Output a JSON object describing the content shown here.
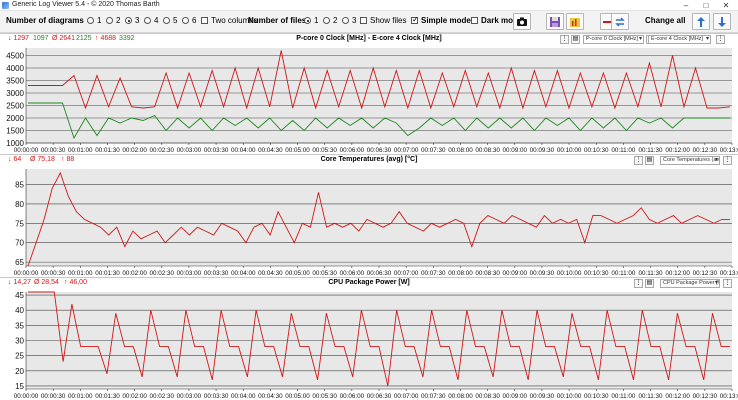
{
  "window": {
    "title": "Generic Log Viewer 5.4 - © 2020 Thomas Barth",
    "minimize": "–",
    "maximize": "□",
    "close": "✕"
  },
  "toolbar": {
    "num_diagrams_label": "Number of diagrams",
    "diagram_options": [
      "1",
      "2",
      "3",
      "4",
      "5",
      "6"
    ],
    "diagram_selected": "3",
    "two_columns_label": "Two columns",
    "num_files_label": "Number of files",
    "file_options": [
      "1",
      "2",
      "3"
    ],
    "file_selected": "1",
    "show_files_label": "Show files",
    "simple_mode_label": "Simple mode",
    "dark_mode_label": "Dark mod",
    "change_all_label": "Change all"
  },
  "colors": {
    "red": "#d01818",
    "green": "#1c8a1c",
    "grid": "#444444",
    "bg": "#e8e8e8"
  },
  "x_ticks": [
    "00:00:00",
    "00:00:30",
    "00:01:00",
    "00:01:30",
    "00:02:00",
    "00:02:30",
    "00:03:00",
    "00:03:30",
    "00:04:00",
    "00:04:30",
    "00:05:00",
    "00:05:30",
    "00:06:00",
    "00:06:30",
    "00:07:00",
    "00:07:30",
    "00:08:00",
    "00:08:30",
    "00:09:00",
    "00:09:30",
    "00:10:00",
    "00:10:30",
    "00:11:00",
    "00:11:30",
    "00:12:00",
    "00:12:30",
    "00:13:00"
  ],
  "panels": [
    {
      "title": "P-core 0 Clock [MHz]  -  E-core 4 Clock [MHz]",
      "stats": {
        "min": "↓ 1297",
        "min2": "1097",
        "avg": "Ø 2641",
        "avg2": "2125",
        "max": "↑ 4688",
        "max2": "3392"
      },
      "selects": [
        "P-core 0 Clock [MHz]",
        "E-core 4 Clock [MHz]"
      ],
      "chart_data": {
        "type": "line",
        "ylim": [
          1000,
          4800
        ],
        "yticks": [
          "1000",
          "1500",
          "2000",
          "2500",
          "3000",
          "3500",
          "4000",
          "4500"
        ],
        "series": [
          {
            "color": "red",
            "values": [
              3300,
              3300,
              3300,
              3300,
              3700,
              2400,
              3700,
              2450,
              3600,
              2450,
              2400,
              2450,
              3800,
              2400,
              3800,
              2450,
              3900,
              2450,
              4000,
              2400,
              4000,
              2450,
              4700,
              2400,
              4000,
              2400,
              3900,
              2450,
              3900,
              2400,
              4000,
              2450,
              3900,
              2400,
              3900,
              2400,
              3800,
              2450,
              3900,
              2450,
              3800,
              2400,
              4000,
              2400,
              3900,
              2450,
              3900,
              2400,
              3800,
              2450,
              3800,
              2400,
              3800,
              2450,
              4200,
              2450,
              4500,
              2450,
              4000,
              2400,
              2400,
              2450
            ]
          },
          {
            "color": "green",
            "values": [
              2600,
              2600,
              2600,
              2600,
              1200,
              2000,
              1300,
              2000,
              1800,
              2000,
              1900,
              2100,
              1500,
              2000,
              1600,
              2000,
              1500,
              2000,
              1700,
              2000,
              1600,
              2000,
              1500,
              1900,
              1500,
              2000,
              1600,
              2000,
              1700,
              2000,
              1600,
              2000,
              1800,
              1300,
              1600,
              2000,
              1700,
              2000,
              1500,
              2000,
              1600,
              2000,
              1600,
              2000,
              1500,
              2000,
              1700,
              2000,
              1500,
              2000,
              1600,
              2000,
              1500,
              2000,
              1800,
              2000,
              1600,
              2000,
              2000,
              2000,
              2000,
              2000
            ]
          }
        ]
      }
    },
    {
      "title": "Core Temperatures (avg) [°C]",
      "stats": {
        "min": "↓ 64",
        "avg": "Ø 75,18",
        "max": "↑ 88"
      },
      "selects": [
        "Core Temperatures (avg)"
      ],
      "chart_data": {
        "type": "line",
        "ylim": [
          64,
          89
        ],
        "yticks": [
          "65",
          "70",
          "75",
          "80",
          "85"
        ],
        "series": [
          {
            "color": "red",
            "values": [
              64,
              70,
              76,
              84,
              88,
              82,
              78,
              76,
              75,
              74,
              72,
              74,
              69,
              73,
              71,
              72,
              73,
              70,
              72,
              74,
              72,
              74,
              73,
              72,
              75,
              74,
              73,
              70,
              74,
              75,
              72,
              78,
              74,
              70,
              75,
              74,
              83,
              74,
              75,
              74,
              75,
              73,
              76,
              75,
              74,
              75,
              78,
              75,
              74,
              73,
              75,
              74,
              75,
              76,
              75,
              69,
              75,
              77,
              76,
              75,
              77,
              76,
              75,
              74,
              77,
              75,
              76,
              75,
              76,
              70,
              77,
              77,
              76,
              75,
              76,
              77,
              79,
              76,
              75,
              76,
              77,
              75,
              76,
              77,
              76,
              75,
              76,
              76
            ]
          }
        ]
      }
    },
    {
      "title": "CPU Package Power [W]",
      "stats": {
        "min": "↓ 14,27",
        "avg": "Ø 28,54",
        "max": "↑ 46,00"
      },
      "selects": [
        "CPU Package Power [W]"
      ],
      "chart_data": {
        "type": "line",
        "ylim": [
          14,
          46
        ],
        "yticks": [
          "15",
          "20",
          "25",
          "30",
          "35",
          "40",
          "45"
        ],
        "series": [
          {
            "color": "red",
            "values": [
              46,
              46,
              46,
              46,
              23,
              42,
              28,
              28,
              28,
              19,
              39,
              28,
              28,
              18,
              40,
              28,
              28,
              18,
              40,
              28,
              28,
              17,
              40,
              28,
              28,
              18,
              40,
              28,
              28,
              18,
              39,
              28,
              28,
              17,
              39,
              28,
              28,
              18,
              40,
              28,
              28,
              15,
              40,
              28,
              28,
              18,
              40,
              28,
              28,
              17,
              40,
              28,
              28,
              18,
              40,
              28,
              28,
              17,
              40,
              28,
              28,
              18,
              39,
              28,
              28,
              17,
              40,
              28,
              28,
              17,
              40,
              28,
              28,
              17,
              39,
              28,
              28,
              17,
              39,
              28,
              28
            ]
          }
        ]
      }
    }
  ]
}
